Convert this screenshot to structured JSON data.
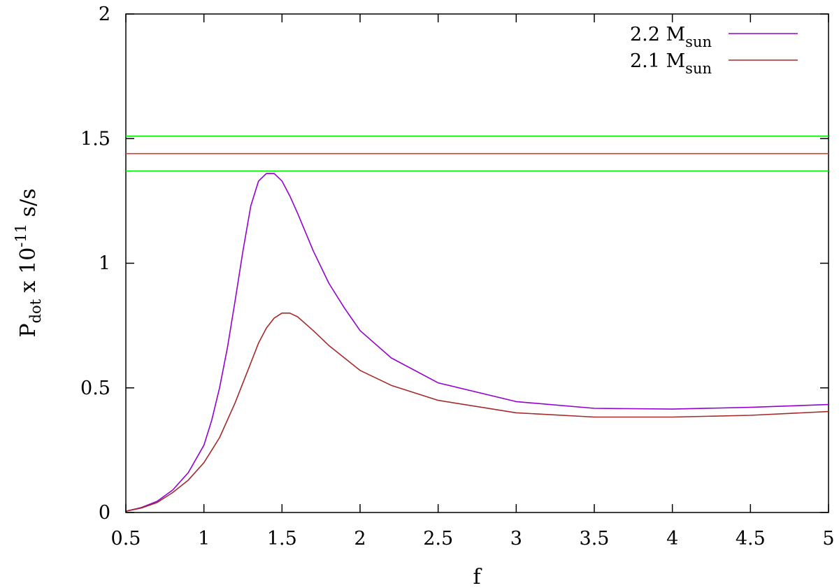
{
  "chart_data": {
    "type": "line",
    "xlabel": "f",
    "ylabel": {
      "base": "P",
      "base_sub": "dot",
      "middle": " x 10",
      "exp": "-11",
      "unit": " s/s"
    },
    "xlim": [
      0.5,
      5
    ],
    "ylim": [
      0,
      2
    ],
    "x_ticks": [
      0.5,
      1,
      1.5,
      2,
      2.5,
      3,
      3.5,
      4,
      4.5,
      5
    ],
    "x_tick_labels": [
      "0.5",
      "1",
      "1.5",
      "2",
      "2.5",
      "3",
      "3.5",
      "4",
      "4.5",
      "5"
    ],
    "y_ticks": [
      0,
      0.5,
      1,
      1.5,
      2
    ],
    "y_tick_labels": [
      "0",
      "0.5",
      "1",
      "1.5",
      "2"
    ],
    "grid": false,
    "legend_position": "top-right",
    "series": [
      {
        "name": "2.2 M",
        "name_sub": "sun",
        "color": "#9400d3",
        "x": [
          0.5,
          0.6,
          0.7,
          0.8,
          0.9,
          1.0,
          1.05,
          1.1,
          1.15,
          1.2,
          1.25,
          1.3,
          1.35,
          1.4,
          1.45,
          1.5,
          1.55,
          1.6,
          1.7,
          1.8,
          1.9,
          2.0,
          2.2,
          2.5,
          3.0,
          3.5,
          4.0,
          4.5,
          5.0
        ],
        "y": [
          0.005,
          0.02,
          0.045,
          0.09,
          0.16,
          0.27,
          0.37,
          0.5,
          0.66,
          0.85,
          1.05,
          1.23,
          1.33,
          1.36,
          1.36,
          1.33,
          1.27,
          1.2,
          1.05,
          0.92,
          0.82,
          0.73,
          0.62,
          0.52,
          0.445,
          0.418,
          0.415,
          0.422,
          0.433
        ]
      },
      {
        "name": "2.1 M",
        "name_sub": "sun",
        "color": "#a52a2a",
        "x": [
          0.5,
          0.6,
          0.7,
          0.8,
          0.9,
          1.0,
          1.1,
          1.2,
          1.3,
          1.35,
          1.4,
          1.45,
          1.5,
          1.55,
          1.6,
          1.7,
          1.8,
          1.9,
          2.0,
          2.2,
          2.5,
          3.0,
          3.5,
          4.0,
          4.5,
          5.0
        ],
        "y": [
          0.005,
          0.018,
          0.04,
          0.08,
          0.13,
          0.2,
          0.3,
          0.44,
          0.6,
          0.68,
          0.74,
          0.78,
          0.8,
          0.8,
          0.785,
          0.73,
          0.67,
          0.62,
          0.57,
          0.51,
          0.45,
          0.4,
          0.383,
          0.383,
          0.39,
          0.405
        ]
      }
    ],
    "reference_lines": [
      {
        "y": 1.51,
        "color": "#00ee00"
      },
      {
        "y": 1.44,
        "color": "#e03a2a"
      },
      {
        "y": 1.37,
        "color": "#00ee00"
      }
    ]
  }
}
